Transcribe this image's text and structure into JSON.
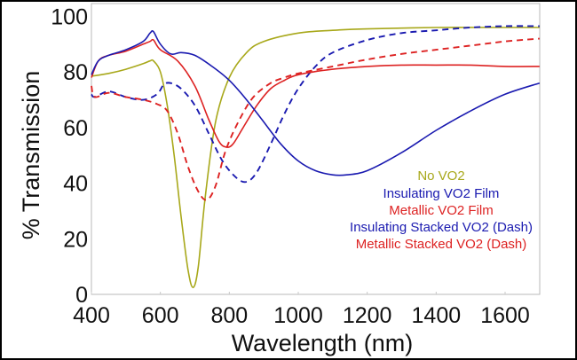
{
  "chart_data": {
    "type": "line",
    "title": "",
    "xlabel": "Wavelength (nm)",
    "ylabel": "% Transmission",
    "xlim": [
      400,
      1700
    ],
    "ylim": [
      0,
      100
    ],
    "xticks": [
      400,
      600,
      800,
      1000,
      1200,
      1400,
      1600
    ],
    "yticks": [
      0,
      20,
      40,
      60,
      80,
      100
    ],
    "xtick_labels": [
      "400",
      "600",
      "800",
      "1000",
      "1200",
      "1400",
      "1600"
    ],
    "ytick_labels": [
      "0",
      "20",
      "40",
      "60",
      "80",
      "100"
    ],
    "grid": false,
    "legend_position": "center-right",
    "series": [
      {
        "name": "No VO2",
        "color": "#a8a81a",
        "dash": false,
        "x": [
          400,
          450,
          500,
          550,
          570,
          580,
          600,
          620,
          640,
          660,
          680,
          695,
          710,
          730,
          760,
          800,
          850,
          900,
          1000,
          1100,
          1200,
          1400,
          1600,
          1700
        ],
        "y": [
          78.5,
          79.5,
          81,
          83,
          84,
          84,
          80,
          68,
          50,
          28,
          9,
          2.5,
          10,
          35,
          62,
          78,
          87,
          91,
          94,
          95,
          95.5,
          96,
          96,
          96
        ]
      },
      {
        "name": "Insulating VO2 Film",
        "color": "#1a1ab0",
        "dash": false,
        "x": [
          400,
          420,
          450,
          500,
          550,
          570,
          580,
          600,
          630,
          660,
          700,
          750,
          800,
          850,
          900,
          950,
          1000,
          1050,
          1100,
          1140,
          1200,
          1300,
          1400,
          1500,
          1600,
          1700
        ],
        "y": [
          79,
          84,
          86,
          88,
          91,
          94,
          94.5,
          90,
          86.5,
          87,
          86,
          82,
          77,
          70,
          62,
          54,
          48,
          44.5,
          43,
          43,
          44.5,
          51,
          59,
          66,
          72,
          76
        ]
      },
      {
        "name": "Metallic VO2 Film",
        "color": "#dd2222",
        "dash": false,
        "x": [
          400,
          420,
          450,
          500,
          550,
          570,
          580,
          600,
          650,
          700,
          740,
          770,
          790,
          810,
          840,
          880,
          920,
          960,
          1000,
          1100,
          1200,
          1300,
          1400,
          1500,
          1600,
          1700
        ],
        "y": [
          78,
          84,
          86,
          87.5,
          90,
          91,
          91.5,
          88,
          84,
          75,
          63,
          55,
          53,
          54,
          60,
          68,
          74,
          77,
          79,
          81,
          82,
          82.5,
          82.5,
          82.5,
          82,
          82
        ]
      },
      {
        "name": "Insulating Stacked VO2 (Dash)",
        "color": "#1a1ab0",
        "dash": true,
        "x": [
          400,
          410,
          450,
          500,
          550,
          590,
          610,
          630,
          660,
          700,
          740,
          780,
          820,
          850,
          880,
          920,
          960,
          1000,
          1050,
          1100,
          1200,
          1300,
          1400,
          1500,
          1600,
          1700
        ],
        "y": [
          72,
          71,
          73,
          71,
          70,
          72,
          75.5,
          76,
          74,
          68,
          58,
          48,
          42,
          40.5,
          44,
          54,
          65,
          74,
          82,
          87,
          91.5,
          94,
          95,
          96,
          96.5,
          96.5
        ]
      },
      {
        "name": "Metallic Stacked VO2 (Dash)",
        "color": "#dd2222",
        "dash": true,
        "x": [
          400,
          410,
          450,
          500,
          550,
          590,
          620,
          650,
          680,
          710,
          735,
          760,
          790,
          830,
          870,
          920,
          960,
          1000,
          1100,
          1200,
          1300,
          1400,
          1500,
          1600,
          1700
        ],
        "y": [
          75,
          71,
          72.5,
          71,
          70,
          68.5,
          66,
          58,
          46,
          37,
          34,
          39,
          52,
          63,
          71,
          76,
          78,
          79.5,
          82,
          84.5,
          86.5,
          88,
          89.5,
          91,
          92
        ]
      }
    ],
    "legend": [
      {
        "label": "No VO2",
        "color": "#a8a81a"
      },
      {
        "label": "Insulating VO2 Film",
        "color": "#1a1ab0"
      },
      {
        "label": "Metallic VO2 Film",
        "color": "#dd2222"
      },
      {
        "label": "Insulating Stacked VO2 (Dash)",
        "color": "#1a1ab0"
      },
      {
        "label": "Metallic Stacked VO2 (Dash)",
        "color": "#dd2222"
      }
    ]
  }
}
